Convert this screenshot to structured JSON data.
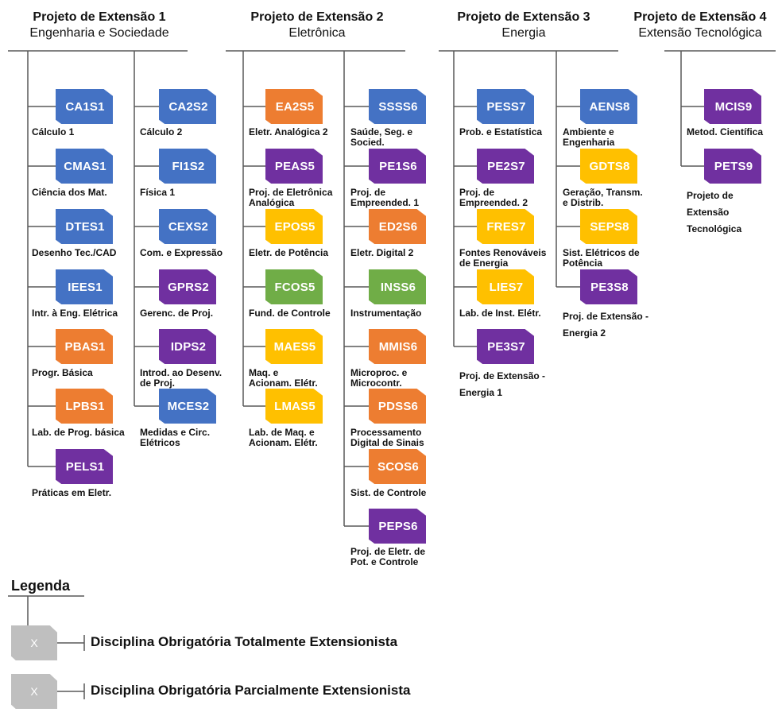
{
  "projects": [
    {
      "name": "Projeto de Extensão 1",
      "subtitle": "Engenharia e Sociedade"
    },
    {
      "name": "Projeto de Extensão 2",
      "subtitle": "Eletrônica"
    },
    {
      "name": "Projeto de Extensão 3",
      "subtitle": "Energia"
    },
    {
      "name": "Projeto de Extensão 4",
      "subtitle": "Extensão Tecnológica"
    }
  ],
  "colors": {
    "blue": "#4472c4",
    "orange": "#ed7d31",
    "purple": "#7030a0",
    "green": "#70ad47",
    "yellow": "#ffc000",
    "gray": "#bfbfbf",
    "line": "#595959"
  },
  "courses": [
    {
      "code": "CA1S1",
      "label": "Cálculo 1",
      "color": "blue"
    },
    {
      "code": "CMAS1",
      "label": "Ciência dos Mat.",
      "color": "blue"
    },
    {
      "code": "DTES1",
      "label": "Desenho Tec./CAD",
      "color": "blue"
    },
    {
      "code": "IEES1",
      "label": "Intr. à Eng. Elétrica",
      "color": "blue"
    },
    {
      "code": "PBAS1",
      "label": "Progr. Básica",
      "color": "orange"
    },
    {
      "code": "LPBS1",
      "label": "Lab. de Prog. básica",
      "color": "orange"
    },
    {
      "code": "PELS1",
      "label": "Práticas em Eletr.",
      "color": "purple"
    },
    {
      "code": "CA2S2",
      "label": "Cálculo 2",
      "color": "blue"
    },
    {
      "code": "FI1S2",
      "label": "Física 1",
      "color": "blue"
    },
    {
      "code": "CEXS2",
      "label": "Com. e Expressão",
      "color": "blue"
    },
    {
      "code": "GPRS2",
      "label": "Gerenc. de Proj.",
      "color": "purple"
    },
    {
      "code": "IDPS2",
      "label": "Introd. ao Desenv. de Proj.",
      "color": "purple"
    },
    {
      "code": "MCES2",
      "label": "Medidas e Circ. Elétricos",
      "color": "blue"
    },
    {
      "code": "EA2S5",
      "label": "Eletr. Analógica 2",
      "color": "orange"
    },
    {
      "code": "PEAS5",
      "label": "Proj. de Eletrônica Analógica",
      "color": "purple"
    },
    {
      "code": "EPOS5",
      "label": "Eletr. de Potência",
      "color": "yellow"
    },
    {
      "code": "FCOS5",
      "label": "Fund. de Controle",
      "color": "green"
    },
    {
      "code": "MAES5",
      "label": "Maq. e Acionam. Elétr.",
      "color": "yellow"
    },
    {
      "code": "LMAS5",
      "label": "Lab. de Maq. e Acionam. Elétr.",
      "color": "yellow"
    },
    {
      "code": "SSSS6",
      "label": "Saúde, Seg. e Socied.",
      "color": "blue"
    },
    {
      "code": "PE1S6",
      "label": "Proj. de Empreended. 1",
      "color": "purple"
    },
    {
      "code": "ED2S6",
      "label": "Eletr. Digital 2",
      "color": "orange"
    },
    {
      "code": "INSS6",
      "label": "Instrumentação",
      "color": "green"
    },
    {
      "code": "MMIS6",
      "label": "Microproc. e Microcontr.",
      "color": "orange"
    },
    {
      "code": "PDSS6",
      "label": "Processamento Digital de Sinais",
      "color": "orange"
    },
    {
      "code": "SCOS6",
      "label": "Sist. de Controle",
      "color": "orange"
    },
    {
      "code": "PEPS6",
      "label": "Proj. de Eletr. de Pot. e Controle",
      "color": "purple"
    },
    {
      "code": "PESS7",
      "label": "Prob. e Estatística",
      "color": "blue"
    },
    {
      "code": "PE2S7",
      "label": "Proj. de Empreended. 2",
      "color": "purple"
    },
    {
      "code": "FRES7",
      "label": "Fontes Renováveis de Energia",
      "color": "yellow"
    },
    {
      "code": "LIES7",
      "label": "Lab. de Inst. Elétr.",
      "color": "yellow"
    },
    {
      "code": "PE3S7",
      "label": "Proj. de Extensão - Energia 1",
      "color": "purple"
    },
    {
      "code": "AENS8",
      "label": "Ambiente e Engenharia",
      "color": "blue"
    },
    {
      "code": "GDTS8",
      "label": "Geração, Transm. e Distrib.",
      "color": "yellow"
    },
    {
      "code": "SEPS8",
      "label": "Sist. Elétricos de Potência",
      "color": "yellow"
    },
    {
      "code": "PE3S8",
      "label": "Proj. de Extensão - Energia 2",
      "color": "purple"
    },
    {
      "code": "MCIS9",
      "label": "Metod. Científica",
      "color": "purple"
    },
    {
      "code": "PETS9",
      "label": "Projeto de Extensão Tecnológica",
      "color": "purple"
    }
  ],
  "legend": {
    "title": "Legenda",
    "items": [
      {
        "symbol": "X",
        "text": "Disciplina Obrigatória Totalmente Extensionista"
      },
      {
        "symbol": "X",
        "text": "Disciplina Obrigatória Parcialmente Extensionista"
      }
    ]
  }
}
